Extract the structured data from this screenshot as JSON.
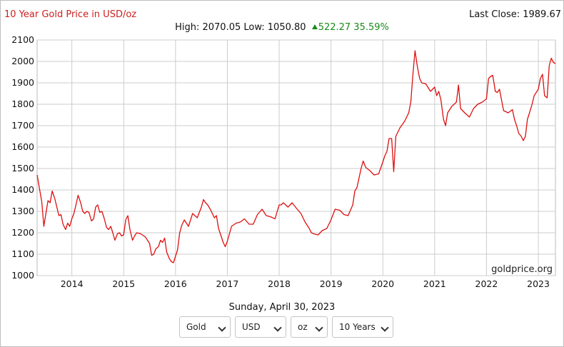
{
  "header": {
    "title": "10 Year Gold Price in USD/oz",
    "last_close": "Last Close: 1989.67",
    "stats": {
      "high_low": "High: 2070.05 Low: 1050.80",
      "change": "522.27 35.59%"
    }
  },
  "colors": {
    "line": "#dd1010",
    "title": "#cc1f1f",
    "change": "#1a8a1a",
    "grid": "#cccccc"
  },
  "chart_data": {
    "type": "line",
    "title": "10 Year Gold Price in USD/oz",
    "xlabel": "",
    "ylabel": "",
    "ylim": [
      1000,
      2100
    ],
    "xlim": [
      2013.33,
      2023.33
    ],
    "yticks": [
      1000,
      1100,
      1200,
      1300,
      1400,
      1500,
      1600,
      1700,
      1800,
      1900,
      2000,
      2100
    ],
    "xticks": [
      "2014",
      "2015",
      "2016",
      "2017",
      "2018",
      "2019",
      "2020",
      "2021",
      "2022",
      "2023"
    ],
    "grid": true,
    "watermark": "goldprice.org",
    "series": [
      {
        "x": [
          2013.33,
          2013.38,
          2013.42,
          2013.46,
          2013.5,
          2013.54,
          2013.58,
          2013.62,
          2013.67,
          2013.71,
          2013.75,
          2013.79,
          2013.83,
          2013.88,
          2013.92,
          2013.96,
          2014.0,
          2014.04,
          2014.08,
          2014.12,
          2014.17,
          2014.21,
          2014.25,
          2014.29,
          2014.33,
          2014.38,
          2014.42,
          2014.46,
          2014.5,
          2014.54,
          2014.58,
          2014.62,
          2014.67,
          2014.71,
          2014.75,
          2014.79,
          2014.83,
          2014.88,
          2014.92,
          2014.96,
          2015.0,
          2015.04,
          2015.08,
          2015.12,
          2015.17,
          2015.21,
          2015.25,
          2015.33,
          2015.42,
          2015.5,
          2015.54,
          2015.58,
          2015.62,
          2015.67,
          2015.71,
          2015.75,
          2015.79,
          2015.83,
          2015.88,
          2015.92,
          2015.96,
          2016.0,
          2016.04,
          2016.08,
          2016.12,
          2016.17,
          2016.25,
          2016.33,
          2016.42,
          2016.5,
          2016.54,
          2016.58,
          2016.62,
          2016.67,
          2016.75,
          2016.79,
          2016.83,
          2016.88,
          2016.92,
          2016.96,
          2017.0,
          2017.08,
          2017.17,
          2017.25,
          2017.33,
          2017.42,
          2017.5,
          2017.58,
          2017.67,
          2017.75,
          2017.83,
          2017.92,
          2018.0,
          2018.04,
          2018.08,
          2018.17,
          2018.25,
          2018.33,
          2018.42,
          2018.5,
          2018.58,
          2018.62,
          2018.67,
          2018.75,
          2018.83,
          2018.92,
          2019.0,
          2019.08,
          2019.17,
          2019.25,
          2019.33,
          2019.42,
          2019.46,
          2019.5,
          2019.58,
          2019.62,
          2019.67,
          2019.75,
          2019.83,
          2019.92,
          2020.0,
          2020.04,
          2020.08,
          2020.12,
          2020.17,
          2020.21,
          2020.25,
          2020.33,
          2020.42,
          2020.5,
          2020.54,
          2020.58,
          2020.62,
          2020.67,
          2020.71,
          2020.75,
          2020.83,
          2020.92,
          2021.0,
          2021.04,
          2021.08,
          2021.12,
          2021.17,
          2021.21,
          2021.25,
          2021.33,
          2021.42,
          2021.46,
          2021.5,
          2021.58,
          2021.67,
          2021.75,
          2021.83,
          2021.92,
          2022.0,
          2022.04,
          2022.08,
          2022.12,
          2022.17,
          2022.21,
          2022.25,
          2022.33,
          2022.42,
          2022.5,
          2022.54,
          2022.58,
          2022.62,
          2022.67,
          2022.71,
          2022.75,
          2022.79,
          2022.83,
          2022.88,
          2022.92,
          2023.0,
          2023.04,
          2023.08,
          2023.12,
          2023.17,
          2023.21,
          2023.25,
          2023.29,
          2023.33
        ],
        "values": [
          1470,
          1400,
          1345,
          1230,
          1290,
          1350,
          1340,
          1395,
          1360,
          1320,
          1280,
          1285,
          1240,
          1215,
          1245,
          1230,
          1265,
          1290,
          1330,
          1375,
          1340,
          1300,
          1290,
          1300,
          1295,
          1255,
          1265,
          1320,
          1330,
          1295,
          1300,
          1270,
          1225,
          1215,
          1230,
          1200,
          1165,
          1195,
          1200,
          1185,
          1190,
          1260,
          1280,
          1215,
          1165,
          1185,
          1200,
          1195,
          1180,
          1150,
          1095,
          1100,
          1125,
          1135,
          1165,
          1155,
          1175,
          1110,
          1080,
          1065,
          1060,
          1090,
          1120,
          1200,
          1235,
          1260,
          1230,
          1290,
          1270,
          1320,
          1355,
          1340,
          1330,
          1310,
          1270,
          1280,
          1220,
          1185,
          1155,
          1135,
          1160,
          1230,
          1245,
          1250,
          1265,
          1240,
          1240,
          1285,
          1310,
          1280,
          1275,
          1265,
          1330,
          1330,
          1340,
          1320,
          1340,
          1315,
          1290,
          1250,
          1220,
          1200,
          1195,
          1190,
          1210,
          1220,
          1260,
          1310,
          1305,
          1285,
          1280,
          1330,
          1395,
          1410,
          1500,
          1535,
          1505,
          1490,
          1470,
          1475,
          1530,
          1560,
          1580,
          1640,
          1640,
          1485,
          1650,
          1690,
          1720,
          1760,
          1810,
          1940,
          2050,
          1970,
          1920,
          1900,
          1895,
          1860,
          1880,
          1840,
          1860,
          1820,
          1730,
          1700,
          1760,
          1790,
          1810,
          1890,
          1780,
          1760,
          1740,
          1780,
          1800,
          1810,
          1825,
          1920,
          1930,
          1935,
          1860,
          1855,
          1870,
          1770,
          1760,
          1775,
          1730,
          1700,
          1665,
          1650,
          1630,
          1650,
          1730,
          1760,
          1800,
          1840,
          1870,
          1920,
          1940,
          1840,
          1830,
          1980,
          2015,
          1995,
          1990
        ]
      }
    ]
  },
  "footer": {
    "date": "Sunday, April 30, 2023",
    "selects": [
      {
        "name": "metal",
        "value": "Gold"
      },
      {
        "name": "currency",
        "value": "USD"
      },
      {
        "name": "unit",
        "value": "oz"
      },
      {
        "name": "range",
        "value": "10 Years"
      }
    ]
  }
}
